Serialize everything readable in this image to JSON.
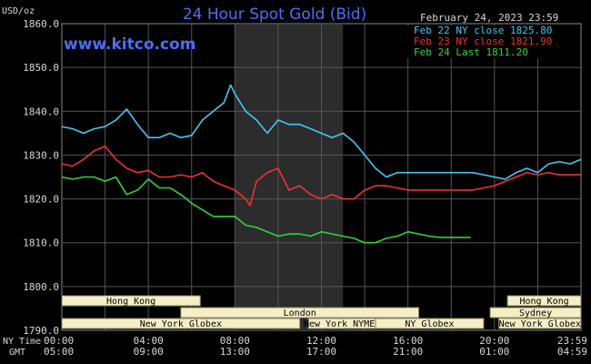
{
  "header": {
    "units_label": "USD/oz",
    "title": "24 Hour Spot Gold (Bid)",
    "timestamp": "February 24, 2023 23:59",
    "website": "www.kitco.com"
  },
  "legend": [
    {
      "label": "Feb 22 NY close 1825.80",
      "color": "#46c8f0"
    },
    {
      "label": "Feb 23 NY close 1821.90",
      "color": "#f03232"
    },
    {
      "label": "Feb 24 Last 1811.20",
      "color": "#32d23c"
    }
  ],
  "time_rows": {
    "ny_label": "NY Time",
    "gmt_label": "GMT",
    "ny_ticks": [
      "00:00",
      "04:00",
      "08:00",
      "12:00",
      "16:00",
      "20:00",
      "23:59"
    ],
    "gmt_ticks": [
      "05:00",
      "09:00",
      "13:00",
      "17:00",
      "21:00",
      "01:00",
      "04:59"
    ]
  },
  "sessions": [
    {
      "label": "Hong Kong",
      "row": 0,
      "start": 0,
      "end": 6.4
    },
    {
      "label": "Hong Kong",
      "row": 0,
      "start": 20.6,
      "end": 24
    },
    {
      "label": "London",
      "row": 1,
      "start": 5.5,
      "end": 16.5
    },
    {
      "label": "Sydney",
      "row": 1,
      "start": 19.8,
      "end": 24
    },
    {
      "label": "New York Globex",
      "row": 2,
      "start": 0,
      "end": 11.0
    },
    {
      "label": "New York NYMEX",
      "row": 2,
      "start": 11.4,
      "end": 14.5
    },
    {
      "label": "NY Globex",
      "row": 2,
      "start": 14.5,
      "end": 19.5
    },
    {
      "label": "New York Globex",
      "row": 2,
      "start": 20.2,
      "end": 24
    }
  ],
  "chart_data": {
    "type": "line",
    "title": "24 Hour Spot Gold (Bid)",
    "ylabel": "USD/oz",
    "xlabel": "NY Time",
    "ylim": [
      1790.0,
      1860.0
    ],
    "xlim": [
      0,
      24
    ],
    "y_ticks": [
      "1790.0",
      "1800.0",
      "1810.0",
      "1820.0",
      "1830.0",
      "1840.0",
      "1850.0",
      "1860.0"
    ],
    "shaded_hours": [
      8,
      13
    ],
    "grid": true,
    "legend_position": "top-right",
    "series": [
      {
        "name": "Feb 22 NY close 1825.80",
        "color": "#46c8f0",
        "x": [
          0,
          0.5,
          1.0,
          1.5,
          2.0,
          2.5,
          3.0,
          3.5,
          4.0,
          4.5,
          5.0,
          5.5,
          6.0,
          6.5,
          7.0,
          7.5,
          7.8,
          8.0,
          8.5,
          9.0,
          9.5,
          10.0,
          10.5,
          11.0,
          11.5,
          12.0,
          12.5,
          13.0,
          13.5,
          14.0,
          14.5,
          15.0,
          15.5,
          16.0,
          16.5,
          17.0,
          17.5,
          18.0,
          18.5,
          19.0,
          19.5,
          20.0,
          20.5,
          21.0,
          21.5,
          22.0,
          22.5,
          23.0,
          23.5,
          23.99
        ],
        "y": [
          1836.5,
          1836,
          1835,
          1836,
          1836.5,
          1838,
          1840.5,
          1837,
          1834,
          1834,
          1835,
          1834,
          1834.5,
          1838,
          1840,
          1842,
          1846,
          1844,
          1840,
          1838,
          1835,
          1838,
          1837,
          1837,
          1836,
          1835,
          1834,
          1835,
          1833,
          1830,
          1827,
          1825,
          1826,
          1826,
          1826,
          1826,
          1826,
          1826,
          1826,
          1826,
          1825.5,
          1825,
          1824.5,
          1826,
          1827,
          1826,
          1828,
          1828.5,
          1828,
          1829
        ]
      },
      {
        "name": "Feb 23 NY close 1821.90",
        "color": "#f03232",
        "x": [
          0,
          0.5,
          1.0,
          1.5,
          2.0,
          2.5,
          3.0,
          3.5,
          4.0,
          4.5,
          5.0,
          5.5,
          6.0,
          6.5,
          7.0,
          7.5,
          8.0,
          8.5,
          8.7,
          9.0,
          9.5,
          10.0,
          10.5,
          11.0,
          11.5,
          12.0,
          12.5,
          13.0,
          13.5,
          14.0,
          14.5,
          15.0,
          15.5,
          16.0,
          16.5,
          17.0,
          17.5,
          18.0,
          18.5,
          19.0,
          19.5,
          20.0,
          20.5,
          21.0,
          21.5,
          22.0,
          22.5,
          23.0,
          23.5,
          23.99
        ],
        "y": [
          1828,
          1827.5,
          1829,
          1831,
          1832,
          1829,
          1827,
          1826,
          1826.5,
          1825,
          1825,
          1825.5,
          1825,
          1826,
          1824,
          1823,
          1822,
          1820,
          1818.5,
          1824,
          1826,
          1827,
          1822,
          1823,
          1821,
          1820,
          1821,
          1820,
          1820,
          1822,
          1823,
          1823,
          1822.5,
          1822,
          1822,
          1822,
          1822,
          1822,
          1822,
          1822,
          1822.5,
          1823,
          1824,
          1825,
          1826,
          1825.5,
          1826,
          1825.5,
          1825.5,
          1825.5
        ]
      },
      {
        "name": "Feb 24 Last 1811.20",
        "color": "#32d23c",
        "x": [
          0,
          0.5,
          1.0,
          1.5,
          2.0,
          2.5,
          3.0,
          3.5,
          4.0,
          4.5,
          5.0,
          5.5,
          6.0,
          6.5,
          7.0,
          7.5,
          8.0,
          8.5,
          9.0,
          9.5,
          10.0,
          10.5,
          11.0,
          11.5,
          12.0,
          12.5,
          13.0,
          13.5,
          14.0,
          14.5,
          15.0,
          15.5,
          16.0,
          16.5,
          17.0,
          17.5,
          18.0,
          18.5,
          18.9
        ],
        "y": [
          1825,
          1824.5,
          1825,
          1825,
          1824,
          1825,
          1821,
          1822,
          1824.5,
          1822.5,
          1822.5,
          1821,
          1819,
          1817.5,
          1816,
          1816,
          1816,
          1814,
          1813.5,
          1812.5,
          1811.5,
          1812,
          1812,
          1811.5,
          1812.5,
          1812,
          1811.5,
          1811,
          1810,
          1810,
          1811,
          1811.5,
          1812.5,
          1812,
          1811.5,
          1811.2,
          1811.2,
          1811.2,
          1811.2
        ]
      }
    ]
  }
}
